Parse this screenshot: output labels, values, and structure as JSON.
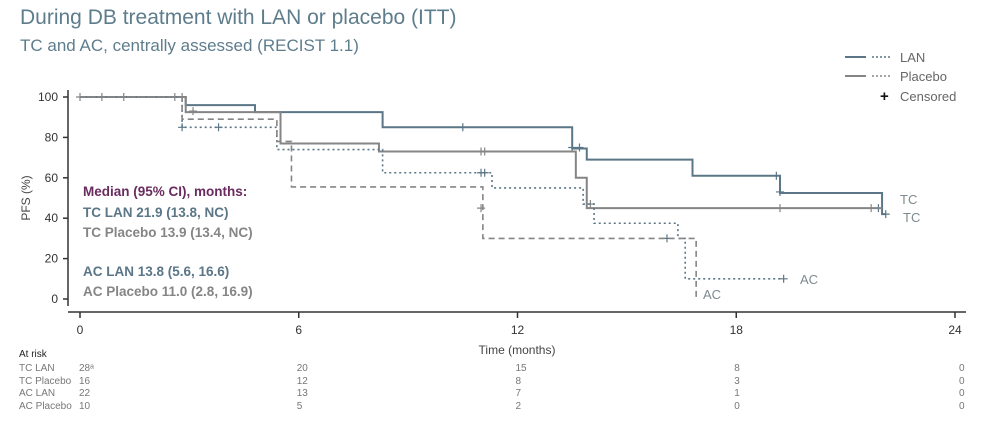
{
  "title": "During DB treatment with LAN or placebo (ITT)",
  "subtitle": "TC and AC, centrally assessed (RECIST 1.1)",
  "legend": {
    "items": [
      {
        "label": "LAN",
        "color": "#5b7686"
      },
      {
        "label": "Placebo",
        "color": "#858585"
      },
      {
        "label": "Censored",
        "symbol": "+"
      }
    ]
  },
  "median_box": {
    "heading": "Median (95% CI), months:",
    "heading_color": "#6a2b5e",
    "lines": [
      {
        "text": "TC LAN 21.9 (13.8, NC)",
        "color": "#5b7686"
      },
      {
        "text": "TC Placebo 13.9 (13.4, NC)",
        "color": "#858585"
      },
      {
        "text": "AC LAN 13.8 (5.6, 16.6)",
        "color": "#5b7686"
      },
      {
        "text": "AC Placebo 11.0 (2.8, 16.9)",
        "color": "#858585"
      }
    ]
  },
  "chart_data": {
    "type": "line",
    "subtype": "kaplan-meier step",
    "xlabel": "Time (months)",
    "ylabel": "PFS (%)",
    "xlim": [
      0,
      24
    ],
    "ylim": [
      0,
      100
    ],
    "xticks": [
      0,
      6,
      12,
      18,
      24
    ],
    "yticks": [
      0,
      20,
      40,
      60,
      80,
      100
    ],
    "grid": false,
    "legend_position": "top-right",
    "series": [
      {
        "name": "TC LAN",
        "end_label": "TC",
        "color": "#5b7686",
        "style": "solid",
        "points": [
          [
            0,
            100
          ],
          [
            2.9,
            96
          ],
          [
            4.8,
            92.5
          ],
          [
            8.3,
            85
          ],
          [
            13.5,
            74.5
          ],
          [
            13.9,
            69
          ],
          [
            16.8,
            61
          ],
          [
            19.2,
            52.5
          ],
          [
            22.0,
            42
          ],
          [
            22.1,
            42
          ]
        ],
        "censored": [
          [
            10.5,
            85
          ],
          [
            13.5,
            75
          ],
          [
            13.7,
            75
          ],
          [
            19.1,
            61
          ],
          [
            19.2,
            53
          ],
          [
            21.9,
            45
          ],
          [
            22.1,
            42
          ]
        ]
      },
      {
        "name": "TC Placebo",
        "end_label": "TC",
        "color": "#858585",
        "style": "solid",
        "points": [
          [
            0,
            100
          ],
          [
            2.9,
            92.5
          ],
          [
            5.5,
            77
          ],
          [
            8.2,
            73
          ],
          [
            13.6,
            60
          ],
          [
            13.9,
            45
          ],
          [
            22.0,
            45
          ]
        ],
        "censored": [
          [
            0,
            100
          ],
          [
            0.6,
            100
          ],
          [
            1.2,
            100
          ],
          [
            2.6,
            100
          ],
          [
            2.8,
            100
          ],
          [
            3.1,
            93
          ],
          [
            11.0,
            73
          ],
          [
            11.1,
            73
          ],
          [
            14.0,
            47
          ],
          [
            19.2,
            45
          ],
          [
            21.7,
            45
          ]
        ]
      },
      {
        "name": "AC LAN",
        "end_label": "AC",
        "color": "#5b7686",
        "style": "dotted",
        "points": [
          [
            0,
            100
          ],
          [
            2.8,
            85
          ],
          [
            5.4,
            74
          ],
          [
            8.3,
            62.5
          ],
          [
            11.3,
            55
          ],
          [
            13.8,
            47
          ],
          [
            14.1,
            37.5
          ],
          [
            16.4,
            30
          ],
          [
            16.6,
            10
          ],
          [
            19.3,
            10
          ]
        ],
        "censored": [
          [
            2.8,
            85
          ],
          [
            3.8,
            85
          ],
          [
            11.0,
            62.5
          ],
          [
            11.1,
            62.5
          ],
          [
            16.1,
            30
          ],
          [
            19.3,
            10
          ]
        ]
      },
      {
        "name": "AC Placebo",
        "end_label": "AC",
        "color": "#858585",
        "style": "dashed",
        "points": [
          [
            0,
            100
          ],
          [
            2.8,
            89
          ],
          [
            5.4,
            78
          ],
          [
            5.8,
            55.5
          ],
          [
            11.05,
            30
          ],
          [
            16.9,
            0
          ]
        ],
        "censored": [
          [
            11.0,
            45
          ]
        ]
      }
    ],
    "at_risk": {
      "heading": "At risk",
      "times": [
        0,
        6,
        12,
        18,
        24
      ],
      "rows": [
        {
          "label": "TC LAN",
          "values": [
            "28ᵃ",
            "20",
            "15",
            "8",
            "0"
          ]
        },
        {
          "label": "TC Placebo",
          "values": [
            "16",
            "12",
            "8",
            "3",
            "0"
          ]
        },
        {
          "label": "AC LAN",
          "values": [
            "22",
            "13",
            "7",
            "1",
            "0"
          ]
        },
        {
          "label": "AC Placebo",
          "values": [
            "10",
            "5",
            "2",
            "0",
            "0"
          ]
        }
      ]
    }
  }
}
